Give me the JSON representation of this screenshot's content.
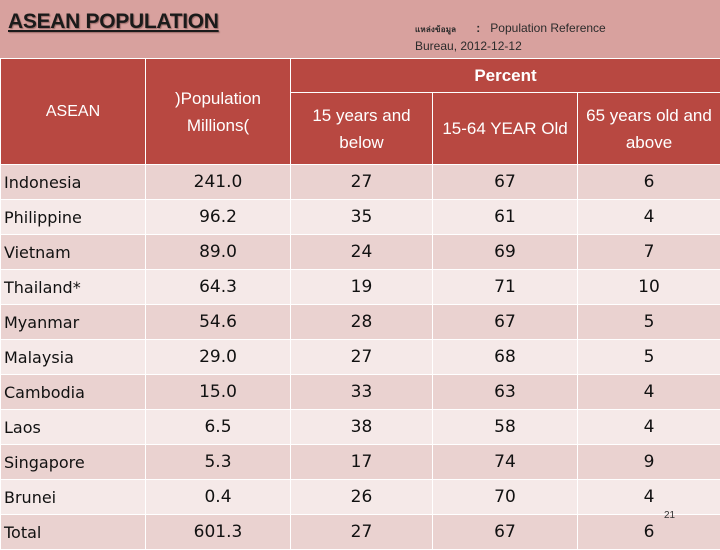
{
  "slide": {
    "title": "ASEAN POPULATION",
    "page_number": "21"
  },
  "source": {
    "label": "แหล่งข้อมูล",
    "colon": ":",
    "text": "Population Reference",
    "text2": "Bureau, 2012-12-12"
  },
  "table": {
    "headers": {
      "country": "ASEAN",
      "population_l1": ")Population",
      "population_l2": "Millions(",
      "percent": "Percent",
      "age_0_15_l1": "15 years and",
      "age_0_15_l2": "below",
      "age_15_64": "15-64 YEAR Old",
      "age_65_l1": "65 years old and",
      "age_65_l2": "above"
    },
    "rows": [
      {
        "country": "Indonesia",
        "population": "241.0",
        "below15": "27",
        "age15_64": "67",
        "above65": "6"
      },
      {
        "country": "Philippine",
        "population": "96.2",
        "below15": "35",
        "age15_64": "61",
        "above65": "4"
      },
      {
        "country": "Vietnam",
        "population": "89.0",
        "below15": "24",
        "age15_64": "69",
        "above65": "7"
      },
      {
        "country": "Thailand*",
        "population": "64.3",
        "below15": "19",
        "age15_64": "71",
        "above65": "10"
      },
      {
        "country": "Myanmar",
        "population": "54.6",
        "below15": "28",
        "age15_64": "67",
        "above65": "5"
      },
      {
        "country": "Malaysia",
        "population": "29.0",
        "below15": "27",
        "age15_64": "68",
        "above65": "5"
      },
      {
        "country": "Cambodia",
        "population": "15.0",
        "below15": "33",
        "age15_64": "63",
        "above65": "4"
      },
      {
        "country": "Laos",
        "population": "6.5",
        "below15": "38",
        "age15_64": "58",
        "above65": "4"
      },
      {
        "country": "Singapore",
        "population": "5.3",
        "below15": "17",
        "age15_64": "74",
        "above65": "9"
      },
      {
        "country": "Brunei",
        "population": "0.4",
        "below15": "26",
        "age15_64": "70",
        "above65": "4"
      },
      {
        "country": "Total",
        "population": "601.3",
        "below15": "27",
        "age15_64": "67",
        "above65": "6"
      }
    ]
  },
  "colors": {
    "background": "#d8a19e",
    "header": "#b84841",
    "row_odd": "#ead2d0",
    "row_even": "#f5e9e8"
  }
}
